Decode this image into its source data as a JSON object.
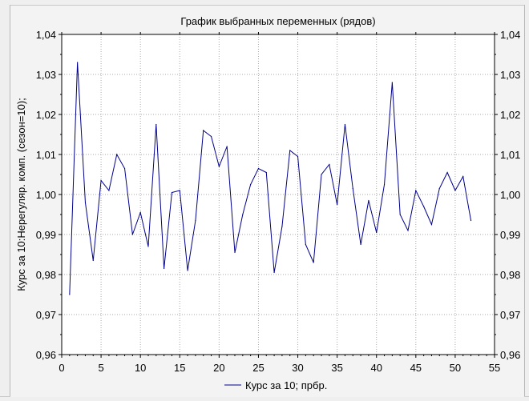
{
  "chart_data": {
    "type": "line",
    "title": "График выбранных переменных (рядов)",
    "ylabel": "Курс за 10:Нерегуляр. комп. (сезон=10);",
    "xlabel": "",
    "xlim": [
      0,
      55
    ],
    "ylim": [
      0.96,
      1.04
    ],
    "x_ticks": [
      "0",
      "5",
      "10",
      "15",
      "20",
      "25",
      "30",
      "35",
      "40",
      "45",
      "50",
      "55"
    ],
    "y_ticks": [
      "0,96",
      "0,97",
      "0,98",
      "0,99",
      "1,00",
      "1,01",
      "1,02",
      "1,03",
      "1,04"
    ],
    "grid": true,
    "legend_position": "bottom",
    "series": [
      {
        "name": "Курс за 10; прбр.",
        "color": "#00008b",
        "x": [
          1,
          2,
          3,
          4,
          5,
          6,
          7,
          8,
          9,
          10,
          11,
          12,
          13,
          14,
          15,
          16,
          17,
          18,
          19,
          20,
          21,
          22,
          23,
          24,
          25,
          26,
          27,
          28,
          29,
          30,
          31,
          32,
          33,
          34,
          35,
          36,
          37,
          38,
          39,
          40,
          41,
          42,
          43,
          44,
          45,
          46,
          47,
          48,
          49,
          50,
          51,
          52
        ],
        "values": [
          0.975,
          1.033,
          0.998,
          0.9835,
          1.0035,
          1.001,
          1.01,
          1.0065,
          0.99,
          0.9955,
          0.987,
          1.0175,
          0.9815,
          1.0005,
          1.001,
          0.981,
          0.9935,
          1.016,
          1.0145,
          1.007,
          1.012,
          0.9855,
          0.995,
          1.0025,
          1.0065,
          1.0055,
          0.9805,
          0.992,
          1.011,
          1.0095,
          0.9875,
          0.983,
          1.005,
          1.0075,
          0.9975,
          1.0175,
          1.0015,
          0.9875,
          0.9985,
          0.9905,
          1.0025,
          1.028,
          0.995,
          0.991,
          1.001,
          0.997,
          0.9925,
          1.0015,
          1.0055,
          1.001,
          1.0045,
          0.9935
        ]
      }
    ]
  }
}
